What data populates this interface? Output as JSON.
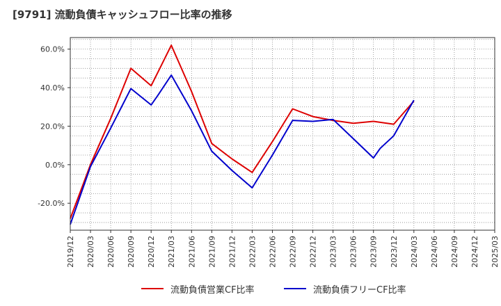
{
  "chart_data": {
    "type": "line",
    "title": "[9791]  流動負債キャッシュフロー比率の推移",
    "xlabel": "",
    "ylabel": "",
    "x": [
      "2019/12",
      "2020/03",
      "2020/06",
      "2020/09",
      "2020/12",
      "2021/03",
      "2021/06",
      "2021/09",
      "2021/12",
      "2022/03",
      "2022/06",
      "2022/09",
      "2022/12",
      "2023/03",
      "2023/06",
      "2023/09",
      "2023/12",
      "2024/03",
      "2024/06",
      "2024/09",
      "2024/12",
      "2025/03"
    ],
    "y_ticks": [
      "60.0%",
      "40.0%",
      "20.0%",
      "0.0%",
      "-20.0%"
    ],
    "y_tick_values": [
      60,
      40,
      20,
      0,
      -20
    ],
    "ylim": [
      -34,
      66
    ],
    "grid": true,
    "legend_position": "bottom",
    "series": [
      {
        "name": "流動負債営業CF比率",
        "color": "#dd0000",
        "points": [
          [
            "2019/12",
            -28
          ],
          [
            "2020/03",
            0
          ],
          [
            "2020/06",
            24
          ],
          [
            "2020/09",
            50
          ],
          [
            "2020/12",
            41
          ],
          [
            "2021/01",
            48
          ],
          [
            "2021/03",
            62
          ],
          [
            "2021/06",
            38
          ],
          [
            "2021/09",
            11
          ],
          [
            "2021/12",
            3
          ],
          [
            "2022/03",
            -4
          ],
          [
            "2022/06",
            12
          ],
          [
            "2022/09",
            29
          ],
          [
            "2022/12",
            25
          ],
          [
            "2023/03",
            23
          ],
          [
            "2023/06",
            21.5
          ],
          [
            "2023/09",
            22.5
          ],
          [
            "2023/12",
            21
          ],
          [
            "2024/03",
            33
          ]
        ]
      },
      {
        "name": "流動負債フリーCF比率",
        "color": "#0000cc",
        "points": [
          [
            "2019/12",
            -31
          ],
          [
            "2020/03",
            -1
          ],
          [
            "2020/06",
            19
          ],
          [
            "2020/09",
            39.5
          ],
          [
            "2020/12",
            31
          ],
          [
            "2021/01",
            36
          ],
          [
            "2021/03",
            46.5
          ],
          [
            "2021/06",
            28
          ],
          [
            "2021/09",
            7
          ],
          [
            "2021/12",
            -3
          ],
          [
            "2022/03",
            -12
          ],
          [
            "2022/06",
            5
          ],
          [
            "2022/09",
            23
          ],
          [
            "2022/12",
            22.5
          ],
          [
            "2023/03",
            23.5
          ],
          [
            "2023/06",
            13.5
          ],
          [
            "2023/09",
            3.5
          ],
          [
            "2023/10",
            8.5
          ],
          [
            "2023/12",
            15
          ],
          [
            "2024/03",
            33.5
          ]
        ]
      }
    ]
  }
}
